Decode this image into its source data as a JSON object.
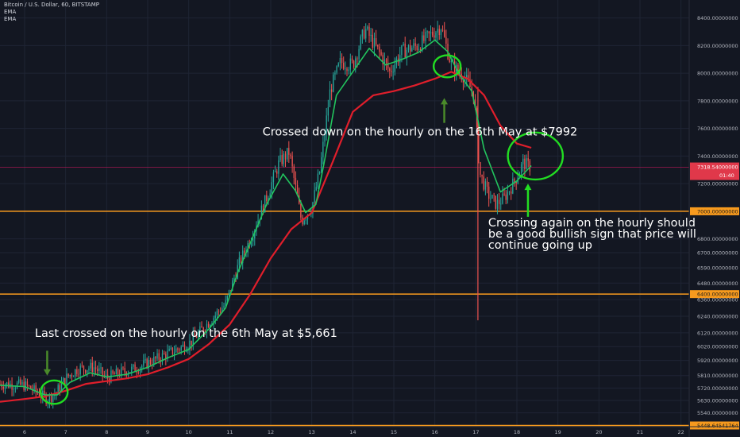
{
  "header": {
    "symbol": "Bitcoin / U.S. Dollar, 60, BITSTAMP",
    "indicators": [
      "EMA",
      "EMA"
    ]
  },
  "colors": {
    "background": "#131722",
    "grid": "#1f2434",
    "axis_text": "#b2b5be",
    "candle_up": "#26a69a",
    "candle_down": "#ef5350",
    "ema_fast": "#22c55e",
    "ema_slow": "#e01e2b",
    "level_line": "#f79a1e",
    "price_line": "#c2185b",
    "annotation_text": "#ffffff",
    "circle": "#22dd22",
    "arrow_dark": "#4a8a2a",
    "arrow_bright": "#22dd22"
  },
  "chart_data": {
    "type": "candlestick",
    "title": "Bitcoin / U.S. Dollar, 60, BITSTAMP",
    "x_range": [
      5.4,
      22.2
    ],
    "ylim": [
      5440,
      8530
    ],
    "x_ticks": [
      "6",
      "7",
      "8",
      "9",
      "10",
      "11",
      "12",
      "13",
      "14",
      "15",
      "16",
      "17",
      "18",
      "19",
      "20",
      "21",
      "22"
    ],
    "x_tick_values": [
      6,
      7,
      8,
      9,
      10,
      11,
      12,
      13,
      14,
      15,
      16,
      17,
      18,
      19,
      20,
      21,
      22
    ],
    "y_ticks": [
      {
        "value": 8400,
        "label": "8400.00000000"
      },
      {
        "value": 8200,
        "label": "8200.00000000"
      },
      {
        "value": 8000,
        "label": "8000.00000000"
      },
      {
        "value": 7800,
        "label": "7800.00000000"
      },
      {
        "value": 7600,
        "label": "7600.00000000"
      },
      {
        "value": 7400,
        "label": "7400.00000000"
      },
      {
        "value": 7200,
        "label": "7200.00000000"
      },
      {
        "value": 6800,
        "label": "6800.00000000"
      },
      {
        "value": 6700,
        "label": "6700.00000000"
      },
      {
        "value": 6590,
        "label": "6590.00000000"
      },
      {
        "value": 6480,
        "label": "6480.00000000"
      },
      {
        "value": 6360,
        "label": "6360.00000000"
      },
      {
        "value": 6240,
        "label": "6240.00000000"
      },
      {
        "value": 6120,
        "label": "6120.00000000"
      },
      {
        "value": 6020,
        "label": "6020.00000000"
      },
      {
        "value": 5920,
        "label": "5920.00000000"
      },
      {
        "value": 5810,
        "label": "5810.00000000"
      },
      {
        "value": 5720,
        "label": "5720.00000000"
      },
      {
        "value": 5630,
        "label": "5630.00000000"
      },
      {
        "value": 5540,
        "label": "5540.00000000"
      }
    ],
    "price_path": [
      [
        5.4,
        5750
      ],
      [
        6.0,
        5740
      ],
      [
        6.3,
        5690
      ],
      [
        6.55,
        5640
      ],
      [
        6.75,
        5680
      ],
      [
        7.0,
        5790
      ],
      [
        7.3,
        5860
      ],
      [
        7.7,
        5870
      ],
      [
        8.0,
        5790
      ],
      [
        8.3,
        5830
      ],
      [
        8.7,
        5860
      ],
      [
        9.0,
        5900
      ],
      [
        9.5,
        5970
      ],
      [
        10.0,
        6040
      ],
      [
        10.5,
        6200
      ],
      [
        10.9,
        6330
      ],
      [
        11.2,
        6600
      ],
      [
        11.5,
        6800
      ],
      [
        11.9,
        7100
      ],
      [
        12.2,
        7350
      ],
      [
        12.45,
        7430
      ],
      [
        12.75,
        6930
      ],
      [
        13.0,
        7030
      ],
      [
        13.2,
        7300
      ],
      [
        13.45,
        7880
      ],
      [
        13.7,
        8080
      ],
      [
        14.0,
        8060
      ],
      [
        14.3,
        8320
      ],
      [
        14.7,
        8120
      ],
      [
        14.9,
        8010
      ],
      [
        15.2,
        8160
      ],
      [
        15.6,
        8200
      ],
      [
        15.9,
        8280
      ],
      [
        16.15,
        8340
      ],
      [
        16.4,
        8060
      ],
      [
        16.7,
        7980
      ],
      [
        16.95,
        7850
      ],
      [
        17.1,
        7270
      ],
      [
        17.3,
        7120
      ],
      [
        17.5,
        7050
      ],
      [
        17.7,
        7100
      ],
      [
        17.95,
        7220
      ],
      [
        18.15,
        7350
      ],
      [
        18.35,
        7318
      ]
    ],
    "ema_fast_path": [
      [
        5.4,
        5740
      ],
      [
        6.0,
        5730
      ],
      [
        6.5,
        5670
      ],
      [
        6.8,
        5670
      ],
      [
        7.1,
        5760
      ],
      [
        7.6,
        5830
      ],
      [
        8.0,
        5800
      ],
      [
        8.5,
        5820
      ],
      [
        9.0,
        5870
      ],
      [
        9.5,
        5940
      ],
      [
        10.0,
        6000
      ],
      [
        10.5,
        6150
      ],
      [
        10.9,
        6300
      ],
      [
        11.2,
        6560
      ],
      [
        11.5,
        6770
      ],
      [
        11.9,
        7050
      ],
      [
        12.3,
        7270
      ],
      [
        12.6,
        7150
      ],
      [
        12.85,
        6990
      ],
      [
        13.1,
        7050
      ],
      [
        13.3,
        7350
      ],
      [
        13.6,
        7840
      ],
      [
        14.0,
        8010
      ],
      [
        14.4,
        8180
      ],
      [
        14.8,
        8060
      ],
      [
        15.2,
        8100
      ],
      [
        15.6,
        8150
      ],
      [
        16.0,
        8240
      ],
      [
        16.3,
        8160
      ],
      [
        16.6,
        7990
      ],
      [
        16.9,
        7870
      ],
      [
        17.2,
        7450
      ],
      [
        17.6,
        7140
      ],
      [
        18.0,
        7220
      ],
      [
        18.35,
        7330
      ]
    ],
    "ema_slow_path": [
      [
        5.4,
        5620
      ],
      [
        6.0,
        5640
      ],
      [
        6.5,
        5660
      ],
      [
        7.0,
        5700
      ],
      [
        7.5,
        5750
      ],
      [
        8.0,
        5770
      ],
      [
        8.5,
        5790
      ],
      [
        9.0,
        5820
      ],
      [
        9.5,
        5870
      ],
      [
        10.0,
        5930
      ],
      [
        10.5,
        6040
      ],
      [
        11.0,
        6180
      ],
      [
        11.5,
        6400
      ],
      [
        12.0,
        6660
      ],
      [
        12.5,
        6870
      ],
      [
        13.0,
        6990
      ],
      [
        13.5,
        7350
      ],
      [
        14.0,
        7720
      ],
      [
        14.5,
        7840
      ],
      [
        15.0,
        7870
      ],
      [
        15.5,
        7910
      ],
      [
        16.0,
        7960
      ],
      [
        16.4,
        8010
      ],
      [
        16.8,
        7960
      ],
      [
        17.2,
        7840
      ],
      [
        17.6,
        7620
      ],
      [
        18.0,
        7490
      ],
      [
        18.35,
        7460
      ]
    ],
    "long_wicks": [
      {
        "x": 17.05,
        "low": 6210,
        "high": 7900
      }
    ],
    "level_lines": [
      {
        "value": 7000,
        "label": "7000.00000000"
      },
      {
        "value": 6400,
        "label": "6400.00000000"
      },
      {
        "value": 5448.64,
        "label": "5448.64541764"
      }
    ],
    "current_price": {
      "value": 7318.54,
      "label": "7318.54000000",
      "countdown": "01:40"
    },
    "annotations": [
      {
        "text": "Crossed down on the hourly on the 16th May at $7992",
        "x": 11.8,
        "y": 7550
      },
      {
        "text": "Crossing again on the hourly should",
        "x": 17.3,
        "y": 6890
      },
      {
        "text": "be a good bullish sign that price will",
        "x": 17.3,
        "y": 6810
      },
      {
        "text": "continue going up",
        "x": 17.3,
        "y": 6730
      },
      {
        "text": "Last crossed on the hourly on the 6th May at $5,661",
        "x": 6.25,
        "y": 6090
      }
    ],
    "circles": [
      {
        "cx": 6.72,
        "cy": 5690,
        "rx": 0.33,
        "ry": 85
      },
      {
        "cx": 16.3,
        "cy": 8050,
        "rx": 0.33,
        "ry": 80
      },
      {
        "cx": 18.45,
        "cy": 7400,
        "rx": 0.67,
        "ry": 170
      }
    ],
    "arrows": [
      {
        "x": 6.55,
        "from": 5990,
        "to": 5810,
        "style": "dark",
        "direction": "down"
      },
      {
        "x": 16.23,
        "from": 7820,
        "to": 7640,
        "style": "dark",
        "direction": "up"
      },
      {
        "x": 18.27,
        "from": 6960,
        "to": 7200,
        "style": "bright",
        "direction": "up"
      }
    ]
  }
}
